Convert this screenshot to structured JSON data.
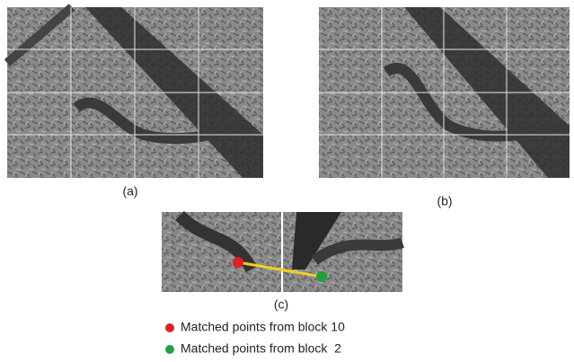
{
  "figure": {
    "panels": [
      {
        "label": "(a)"
      },
      {
        "label": "(b)"
      },
      {
        "label": "(c)"
      }
    ],
    "legend": [
      {
        "label": "Matched points from block 10",
        "color": "#e02020"
      },
      {
        "label": "Matched points from block  2",
        "color": "#20a040"
      }
    ]
  }
}
